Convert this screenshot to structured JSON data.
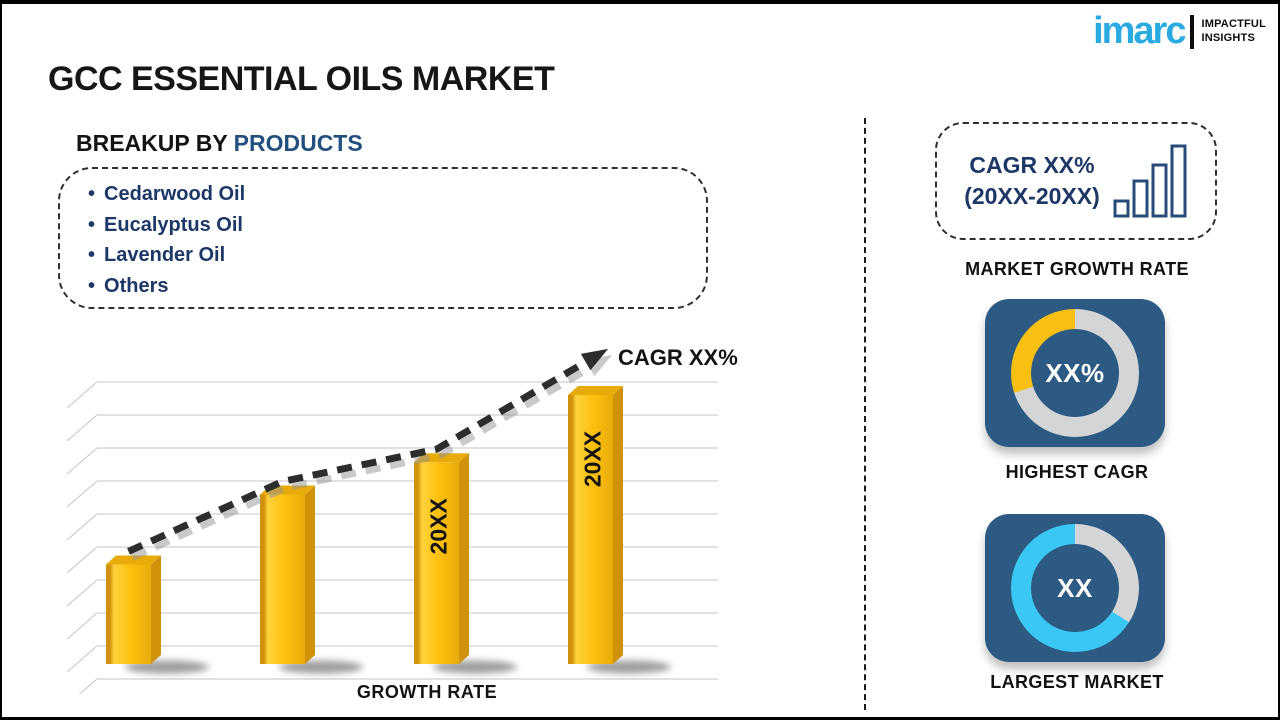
{
  "header": {
    "title": "GCC ESSENTIAL OILS MARKET"
  },
  "logo": {
    "brand": "imarc",
    "tagline_line1": "IMPACTFUL",
    "tagline_line2": "INSIGHTS"
  },
  "breakup": {
    "heading_prefix": "BREAKUP BY",
    "heading_highlight": "PRODUCTS",
    "bullet": "•",
    "items": [
      "Cedarwood Oil",
      "Eucalyptus Oil",
      "Lavender Oil",
      "Others"
    ]
  },
  "chart_data": {
    "type": "bar",
    "title": "",
    "categories": [
      "",
      "",
      "20XX",
      "20XX"
    ],
    "relative_heights": [
      37,
      63,
      75,
      100
    ],
    "bar_labels": [
      "",
      "",
      "20XX",
      "20XX"
    ],
    "values_shown": false,
    "trend_label": "CAGR XX%",
    "trend_style": "dashed-arrow-up",
    "xlabel": "GROWTH RATE",
    "ylabel": "",
    "legend": "none",
    "grid": true
  },
  "right_panel": {
    "cagr_box": {
      "line1": "CAGR XX%",
      "line2": "(20XX-20XX)",
      "label": "MARKET GROWTH RATE"
    },
    "highest_cagr": {
      "value": "XX%",
      "label": "HIGHEST CAGR",
      "donut": {
        "track_color": "#d3d5d7",
        "segment_color": "#f9c013",
        "segment_percent": 30,
        "segment_position": "end"
      }
    },
    "largest_market": {
      "value": "XX",
      "label": "LARGEST MARKET",
      "donut": {
        "track_color": "#3bc7f4",
        "segment_color": "#d3d5d7",
        "segment_percent": 34,
        "segment_position": "start"
      }
    }
  },
  "colors": {
    "imarc_cyan": "#29abe2",
    "navy_text": "#1d3867",
    "heading_highlight": "#21507f",
    "tile_blue": "#2c5a82",
    "bar_front": "#fdc00d",
    "bar_front_light": "#ffd23c",
    "bar_side_dark": "#d0920a",
    "bar_top": "#e7ab0a",
    "trend": "#2d2d2d",
    "trend_shadow": "#949494",
    "grid": "#c4c4c4",
    "icon_navy": "#274c77",
    "text_black": "#141414"
  }
}
